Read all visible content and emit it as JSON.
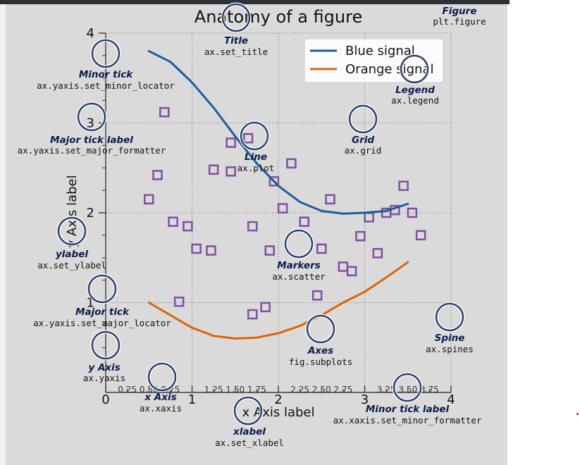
{
  "chart_data": {
    "type": "line",
    "title": "Anatomy of a figure",
    "xlabel": "x Axis label",
    "ylabel": "y Axis label",
    "xlim": [
      0,
      4
    ],
    "ylim": [
      0,
      4
    ],
    "grid": true,
    "legend_position": "top-right",
    "major_ticks_x": [
      "0",
      "1",
      "2",
      "3",
      "4"
    ],
    "minor_ticks_x": [
      "0.25",
      "0.50",
      "0.75",
      "1.25",
      "1.50",
      "1.75",
      "2.25",
      "2.50",
      "2.75",
      "3.25",
      "3.50",
      "3.75"
    ],
    "major_ticks_y": [
      "1",
      "2",
      "3",
      "4"
    ],
    "series": [
      {
        "name": "Blue signal",
        "color": "#1f5c99",
        "x": [
          0.5,
          0.75,
          1.0,
          1.25,
          1.5,
          1.75,
          2.0,
          2.25,
          2.5,
          2.75,
          3.0,
          3.25,
          3.5
        ],
        "y": [
          3.8,
          3.68,
          3.45,
          3.17,
          2.85,
          2.55,
          2.3,
          2.12,
          2.02,
          1.99,
          2.0,
          2.02,
          2.1
        ]
      },
      {
        "name": "Orange signal",
        "color": "#d9650a",
        "x": [
          0.5,
          0.75,
          1.0,
          1.25,
          1.5,
          1.75,
          2.0,
          2.25,
          2.5,
          2.75,
          3.0,
          3.25,
          3.5
        ],
        "y": [
          1.0,
          0.86,
          0.72,
          0.63,
          0.6,
          0.61,
          0.66,
          0.74,
          0.86,
          1.0,
          1.12,
          1.28,
          1.45
        ]
      }
    ],
    "scatter": {
      "color": "#7e4fa3",
      "points": [
        [
          0.68,
          3.12
        ],
        [
          0.6,
          2.42
        ],
        [
          0.5,
          2.15
        ],
        [
          0.78,
          1.9
        ],
        [
          0.95,
          1.85
        ],
        [
          1.05,
          1.6
        ],
        [
          1.22,
          1.58
        ],
        [
          0.85,
          1.01
        ],
        [
          1.25,
          2.48
        ],
        [
          1.45,
          2.46
        ],
        [
          1.45,
          2.78
        ],
        [
          1.65,
          2.83
        ],
        [
          1.95,
          2.35
        ],
        [
          2.05,
          2.05
        ],
        [
          2.15,
          2.55
        ],
        [
          1.7,
          0.87
        ],
        [
          1.7,
          1.85
        ],
        [
          1.9,
          1.58
        ],
        [
          2.3,
          1.9
        ],
        [
          2.5,
          1.6
        ],
        [
          2.6,
          2.15
        ],
        [
          2.75,
          1.4
        ],
        [
          2.85,
          1.35
        ],
        [
          2.95,
          1.74
        ],
        [
          3.05,
          1.95
        ],
        [
          3.15,
          1.55
        ],
        [
          3.25,
          2.0
        ],
        [
          3.35,
          2.03
        ],
        [
          3.45,
          2.3
        ],
        [
          3.55,
          2.0
        ],
        [
          3.65,
          1.75
        ],
        [
          2.45,
          1.08
        ],
        [
          1.85,
          0.95
        ]
      ]
    }
  },
  "annotations": [
    {
      "title": "Figure",
      "code": "plt.figure"
    },
    {
      "title": "Title",
      "code": "ax.set_title"
    },
    {
      "title": "Legend",
      "code": "ax.legend"
    },
    {
      "title": "Minor tick",
      "code": "ax.yaxis.set_minor_locator"
    },
    {
      "title": "Major tick label",
      "code": "ax.yaxis.set_major_formatter"
    },
    {
      "title": "Line",
      "code": "ax.plot"
    },
    {
      "title": "Grid",
      "code": "ax.grid"
    },
    {
      "title": "ylabel",
      "code": "ax.set_ylabel"
    },
    {
      "title": "Markers",
      "code": "ax.scatter"
    },
    {
      "title": "Major tick",
      "code": "ax.yaxis.set_major_locator"
    },
    {
      "title": "Spine",
      "code": "ax.spines"
    },
    {
      "title": "Axes",
      "code": "fig.subplots"
    },
    {
      "title": "y Axis",
      "code": "ax.yaxis"
    },
    {
      "title": "x Axis",
      "code": "ax.xaxis"
    },
    {
      "title": "Minor tick label",
      "code": "ax.xaxis.set_minor_formatter"
    },
    {
      "title": "xlabel",
      "code": "ax.set_xlabel"
    }
  ],
  "colors": {
    "annotation_ring": "#2c3e6b",
    "annotation_title": "#0d1b4a",
    "figure_bg": "#dadada",
    "axes_bg": "#ffffff"
  }
}
